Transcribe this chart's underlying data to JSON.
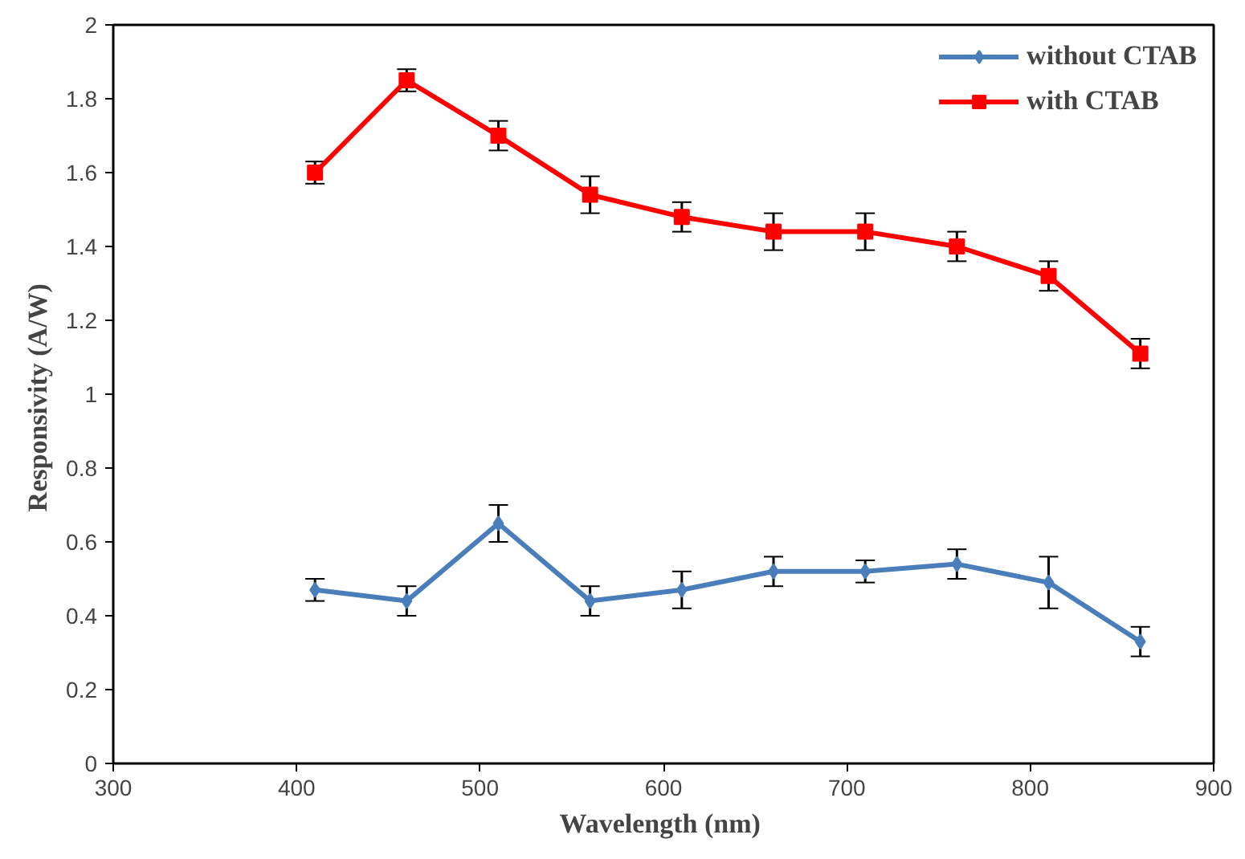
{
  "chart_data": {
    "type": "line",
    "xlabel": "Wavelength  (nm)",
    "ylabel": "Responsivity  (A/W)",
    "x": [
      410,
      460,
      510,
      560,
      610,
      660,
      710,
      760,
      810,
      860
    ],
    "series": [
      {
        "name": "without CTAB",
        "color": "#4a7ebb",
        "marker": "diamond",
        "values": [
          0.47,
          0.44,
          0.65,
          0.44,
          0.47,
          0.52,
          0.52,
          0.54,
          0.49,
          0.33
        ],
        "errors": [
          0.03,
          0.04,
          0.05,
          0.04,
          0.05,
          0.04,
          0.03,
          0.04,
          0.07,
          0.04
        ]
      },
      {
        "name": "with CTAB",
        "color": "#ff0000",
        "marker": "square",
        "values": [
          1.6,
          1.85,
          1.7,
          1.54,
          1.48,
          1.44,
          1.44,
          1.4,
          1.32,
          1.11
        ],
        "errors": [
          0.03,
          0.03,
          0.04,
          0.05,
          0.04,
          0.05,
          0.05,
          0.04,
          0.04,
          0.04
        ]
      }
    ],
    "xlim": [
      300,
      900
    ],
    "xticks": [
      300,
      400,
      500,
      600,
      700,
      800,
      900
    ],
    "ylim": [
      0,
      2
    ],
    "yticks": [
      0,
      0.2,
      0.4,
      0.6,
      0.8,
      1,
      1.2,
      1.4,
      1.6,
      1.8,
      2
    ],
    "grid": false,
    "legend": "top right",
    "line_style": "solid"
  }
}
